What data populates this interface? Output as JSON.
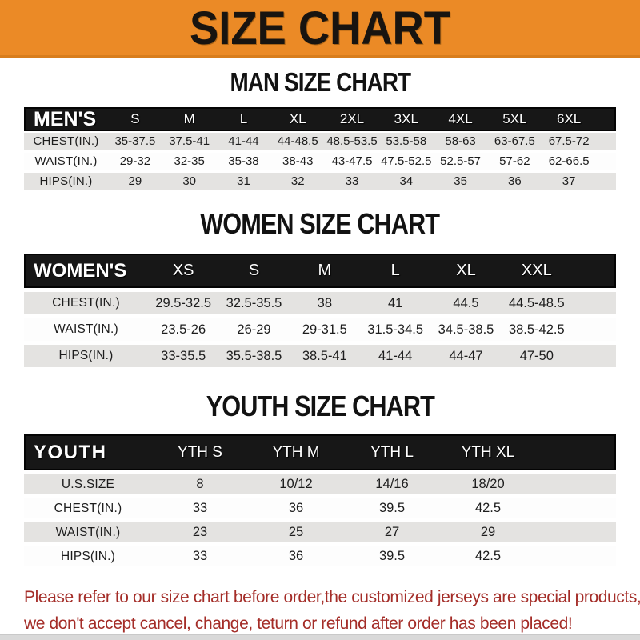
{
  "banner": {
    "title": "SIZE CHART"
  },
  "sections": [
    {
      "heading": "MAN SIZE CHART",
      "group_label": "MEN'S",
      "columns": [
        "S",
        "M",
        "L",
        "XL",
        "2XL",
        "3XL",
        "4XL",
        "5XL",
        "6XL"
      ],
      "rows": [
        {
          "label": "CHEST(IN.)",
          "values": [
            "35-37.5",
            "37.5-41",
            "41-44",
            "44-48.5",
            "48.5-53.5",
            "53.5-58",
            "58-63",
            "63-67.5",
            "67.5-72"
          ]
        },
        {
          "label": "WAIST(IN.)",
          "values": [
            "29-32",
            "32-35",
            "35-38",
            "38-43",
            "43-47.5",
            "47.5-52.5",
            "52.5-57",
            "57-62",
            "62-66.5"
          ]
        },
        {
          "label": "HIPS(IN.)",
          "values": [
            "29",
            "30",
            "31",
            "32",
            "33",
            "34",
            "35",
            "36",
            "37"
          ]
        }
      ]
    },
    {
      "heading": "WOMEN SIZE CHART",
      "group_label": "WOMEN'S",
      "columns": [
        "XS",
        "S",
        "M",
        "L",
        "XL",
        "XXL"
      ],
      "rows": [
        {
          "label": "CHEST(IN.)",
          "values": [
            "29.5-32.5",
            "32.5-35.5",
            "38",
            "41",
            "44.5",
            "44.5-48.5"
          ]
        },
        {
          "label": "WAIST(IN.)",
          "values": [
            "23.5-26",
            "26-29",
            "29-31.5",
            "31.5-34.5",
            "34.5-38.5",
            "38.5-42.5"
          ]
        },
        {
          "label": "HIPS(IN.)",
          "values": [
            "33-35.5",
            "35.5-38.5",
            "38.5-41",
            "41-44",
            "44-47",
            "47-50"
          ]
        }
      ]
    },
    {
      "heading": "YOUTH SIZE CHART",
      "group_label": "YOUTH",
      "columns": [
        "YTH S",
        "YTH M",
        "YTH L",
        "YTH XL"
      ],
      "rows": [
        {
          "label": "U.S.SIZE",
          "values": [
            "8",
            "10/12",
            "14/16",
            "18/20"
          ]
        },
        {
          "label": "CHEST(IN.)",
          "values": [
            "33",
            "36",
            "39.5",
            "42.5"
          ]
        },
        {
          "label": "WAIST(IN.)",
          "values": [
            "23",
            "25",
            "27",
            "29"
          ]
        },
        {
          "label": "HIPS(IN.)",
          "values": [
            "33",
            "36",
            "39.5",
            "42.5"
          ]
        }
      ]
    }
  ],
  "footer": {
    "line1": "Please refer to our size chart before order,the customized jerseys are special products,",
    "line2": "we don't accept cancel, change, teturn or refund after order has been placed!"
  },
  "colors": {
    "banner_orange": "#EB8A26",
    "table_header_black": "#171717",
    "striped_row_gray": "#E4E3E1",
    "note_red": "#A42D28",
    "bottom_strip_gray": "#D9D9D9"
  }
}
